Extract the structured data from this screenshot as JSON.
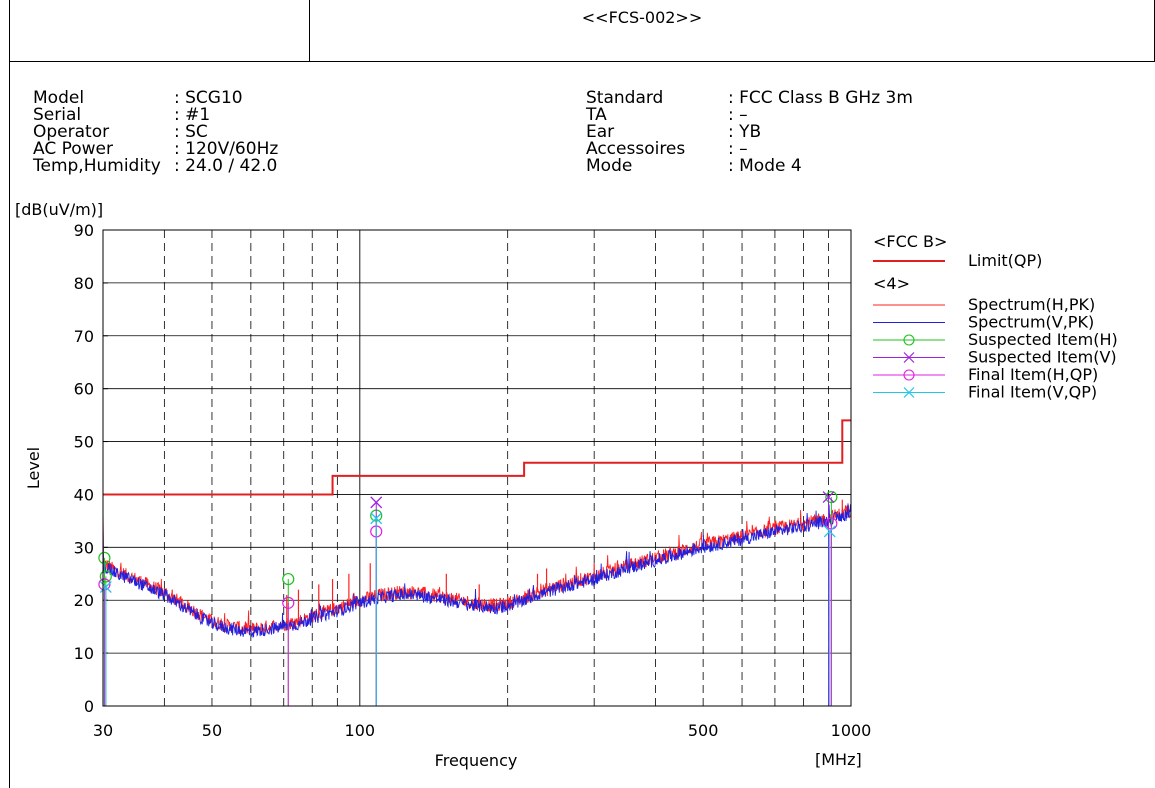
{
  "report": {
    "title": "<<FCS-002>>",
    "info_left": [
      {
        "key": "Model",
        "value": ": SCG10"
      },
      {
        "key": "Serial",
        "value": ": #1"
      },
      {
        "key": "Operator",
        "value": ": SC"
      },
      {
        "key": "AC Power",
        "value": ": 120V/60Hz"
      },
      {
        "key": "Temp,Humidity",
        "value": ": 24.0 / 42.0"
      }
    ],
    "info_right": [
      {
        "key": "Standard",
        "value": ": FCC Class B GHz 3m"
      },
      {
        "key": "TA",
        "value": ": –"
      },
      {
        "key": "Ear",
        "value": ": YB"
      },
      {
        "key": "Accessoires",
        "value": ": –"
      },
      {
        "key": "Mode",
        "value": ": Mode 4"
      }
    ]
  },
  "chart_data": {
    "type": "line",
    "title": "",
    "xlabel": "Frequency",
    "xunit": "[MHz]",
    "ylabel": "Level",
    "yunit": "[dB(uV/m)]",
    "xscale": "log",
    "xlim": [
      30,
      1000
    ],
    "ylim": [
      0,
      90
    ],
    "x_ticks": [
      30,
      50,
      100,
      500,
      1000
    ],
    "y_ticks": [
      0,
      10,
      20,
      30,
      40,
      50,
      60,
      70,
      80,
      90
    ],
    "grid": true,
    "legend_position": "right",
    "legend_groups": [
      {
        "header": "<FCC B>",
        "entries": [
          "Limit(QP)"
        ]
      },
      {
        "header": "<4>",
        "entries": [
          "Spectrum(H,PK)",
          "Spectrum(V,PK)",
          "Suspected Item(H)",
          "Suspected Item(V)",
          "Final Item(H,QP)",
          "Final Item(V,QP)"
        ]
      }
    ],
    "colors": {
      "limit": "#e02020",
      "spectrum_h": "#ff2020",
      "spectrum_v": "#2020e0",
      "suspected_h": "#20c020",
      "suspected_v": "#a020e0",
      "final_h": "#e020e0",
      "final_v": "#20c8e8"
    },
    "limit_qp": [
      [
        30,
        40
      ],
      [
        88,
        40
      ],
      [
        88,
        43.5
      ],
      [
        216,
        43.5
      ],
      [
        216,
        46
      ],
      [
        960,
        46
      ],
      [
        960,
        54
      ],
      [
        1000,
        54
      ]
    ],
    "spectrum_h_pk": [
      [
        30,
        27
      ],
      [
        32,
        25.5
      ],
      [
        35,
        24
      ],
      [
        40,
        21.5
      ],
      [
        45,
        18.5
      ],
      [
        50,
        16
      ],
      [
        55,
        15
      ],
      [
        60,
        14.5
      ],
      [
        65,
        15
      ],
      [
        70,
        15.5
      ],
      [
        75,
        16
      ],
      [
        80,
        17
      ],
      [
        90,
        18.5
      ],
      [
        100,
        20
      ],
      [
        110,
        21
      ],
      [
        120,
        21.5
      ],
      [
        130,
        21.5
      ],
      [
        140,
        21
      ],
      [
        150,
        20.5
      ],
      [
        170,
        19.5
      ],
      [
        190,
        19
      ],
      [
        210,
        20
      ],
      [
        230,
        21.5
      ],
      [
        260,
        23
      ],
      [
        300,
        24.5
      ],
      [
        350,
        26.5
      ],
      [
        400,
        28
      ],
      [
        500,
        30.5
      ],
      [
        600,
        32
      ],
      [
        700,
        33.5
      ],
      [
        800,
        34.5
      ],
      [
        900,
        35.5
      ],
      [
        1000,
        37
      ]
    ],
    "spectrum_v_pk": [
      [
        30,
        26.5
      ],
      [
        32,
        25
      ],
      [
        35,
        23.5
      ],
      [
        40,
        21
      ],
      [
        45,
        18
      ],
      [
        50,
        15.5
      ],
      [
        55,
        14.5
      ],
      [
        60,
        14
      ],
      [
        65,
        14.5
      ],
      [
        70,
        15
      ],
      [
        75,
        15.5
      ],
      [
        80,
        16.5
      ],
      [
        90,
        18
      ],
      [
        100,
        19.5
      ],
      [
        110,
        20.5
      ],
      [
        120,
        21
      ],
      [
        130,
        21
      ],
      [
        140,
        20.5
      ],
      [
        150,
        20
      ],
      [
        170,
        19
      ],
      [
        190,
        18.5
      ],
      [
        210,
        19.5
      ],
      [
        230,
        21
      ],
      [
        260,
        22.5
      ],
      [
        300,
        24
      ],
      [
        350,
        26
      ],
      [
        400,
        27.5
      ],
      [
        500,
        30
      ],
      [
        600,
        31.5
      ],
      [
        700,
        33
      ],
      [
        800,
        34
      ],
      [
        900,
        35
      ],
      [
        1000,
        36.5
      ]
    ],
    "spikes": [
      [
        41.5,
        22
      ],
      [
        71,
        21
      ],
      [
        75,
        22
      ],
      [
        82.5,
        23
      ],
      [
        88,
        24
      ],
      [
        95,
        25
      ],
      [
        105,
        27
      ],
      [
        120,
        22
      ],
      [
        150,
        25
      ],
      [
        175,
        23
      ],
      [
        220,
        22
      ],
      [
        230,
        25
      ],
      [
        240,
        26
      ],
      [
        300,
        27
      ],
      [
        600,
        33
      ],
      [
        700,
        35
      ],
      [
        960,
        39
      ]
    ],
    "suspected_h": [
      [
        30.2,
        28
      ],
      [
        30.4,
        24.5
      ],
      [
        71.5,
        24
      ],
      [
        108,
        36
      ],
      [
        912,
        39.5
      ]
    ],
    "suspected_v": [
      [
        108,
        38.5
      ],
      [
        900,
        39.5
      ]
    ],
    "final_h_qp": [
      [
        30.2,
        23
      ],
      [
        71.5,
        19.5
      ],
      [
        108,
        33
      ],
      [
        912,
        34.5
      ]
    ],
    "final_v_qp": [
      [
        30.4,
        22.5
      ],
      [
        108,
        35.5
      ],
      [
        905,
        33
      ]
    ]
  }
}
